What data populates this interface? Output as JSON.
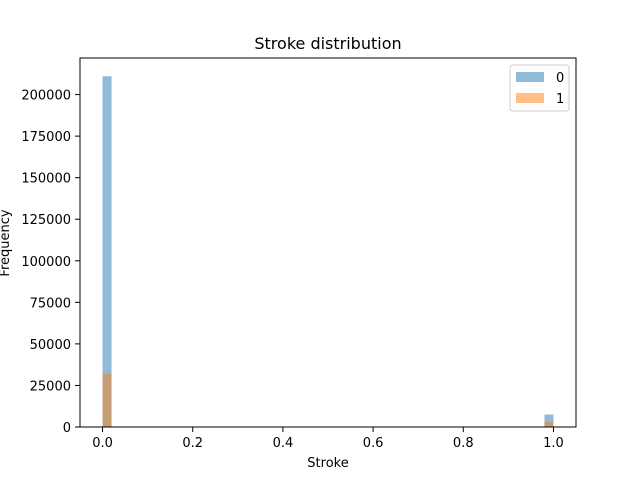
{
  "chart_data": {
    "type": "bar",
    "title": "Stroke distribution",
    "xlabel": "Stroke",
    "ylabel": "Frequency",
    "xlim": [
      -0.05,
      1.05
    ],
    "ylim": [
      0,
      222000
    ],
    "xticks": [
      0.0,
      0.2,
      0.4,
      0.6,
      0.8,
      1.0
    ],
    "xtick_labels": [
      "0.0",
      "0.2",
      "0.4",
      "0.6",
      "0.8",
      "1.0"
    ],
    "yticks": [
      0,
      25000,
      50000,
      75000,
      100000,
      125000,
      150000,
      175000,
      200000
    ],
    "ytick_labels": [
      "0",
      "25000",
      "50000",
      "75000",
      "100000",
      "125000",
      "150000",
      "175000",
      "200000"
    ],
    "bin_width": 0.02,
    "legend_position": "top-right",
    "grid": false,
    "series": [
      {
        "name": "0",
        "color": "#1f77b4",
        "opacity": 0.5,
        "bars": [
          {
            "x_start": 0.0,
            "value": 211000
          },
          {
            "x_start": 0.98,
            "value": 7500
          }
        ]
      },
      {
        "name": "1",
        "color": "#ff7f0e",
        "opacity": 0.5,
        "bars": [
          {
            "x_start": 0.0,
            "value": 32000
          },
          {
            "x_start": 0.98,
            "value": 3000
          }
        ]
      }
    ]
  }
}
